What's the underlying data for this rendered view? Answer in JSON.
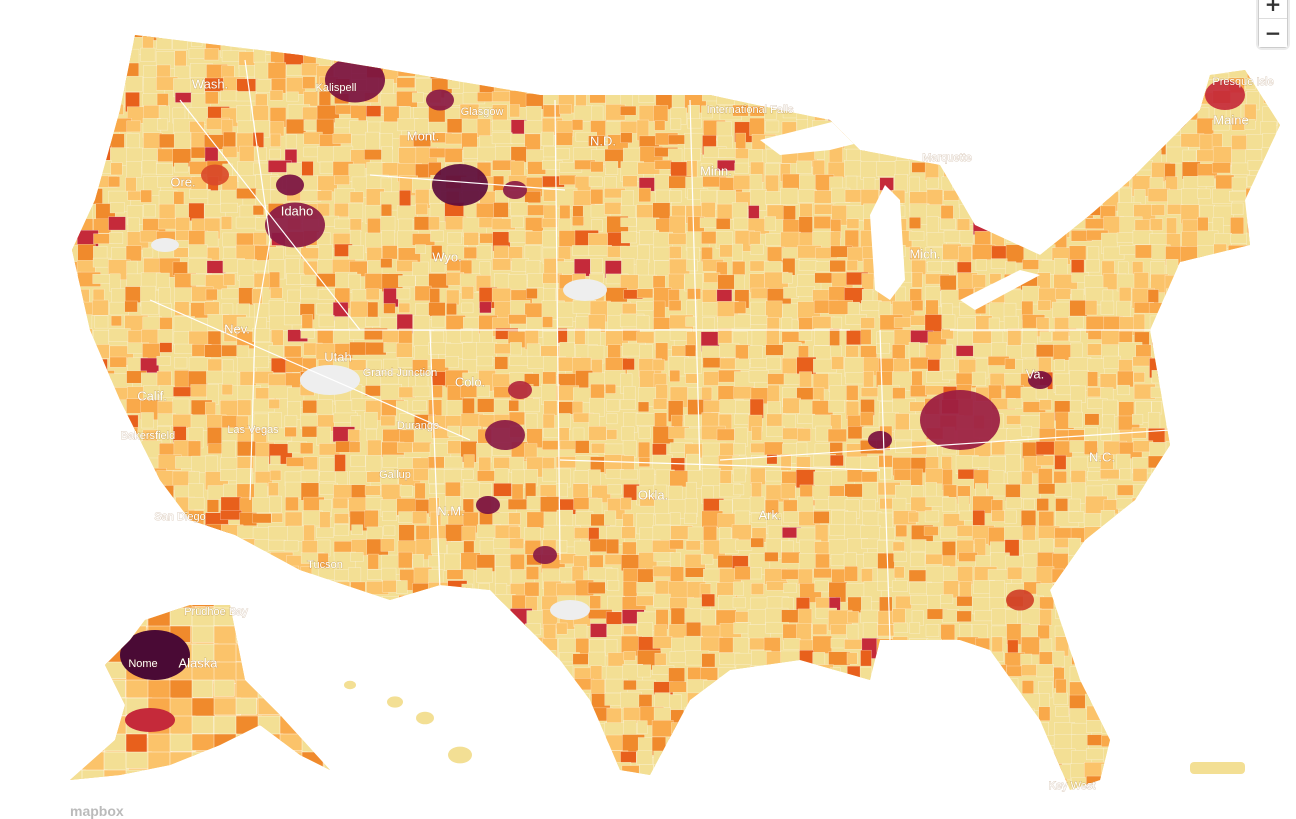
{
  "map": {
    "labels": [
      "Wash.",
      "Ore.",
      "Idaho",
      "Mont.",
      "N.D.",
      "Minn.",
      "Wyo.",
      "Nev.",
      "Utah",
      "Calif.",
      "Colo.",
      "N.M.",
      "Okla.",
      "Ark.",
      "Maine",
      "N.C.",
      "Alaska",
      "Kalispell",
      "Glasgow",
      "Durango",
      "Presque Isle",
      "Nome",
      "Bakersfield",
      "Prudhoe Bay",
      "Key West",
      "Las Vegas",
      "San Diego",
      "Tucson",
      "Gallup",
      "Grand Junction",
      "International Falls",
      "Marquette",
      "Va.",
      "Mich."
    ]
  },
  "controls": {
    "zoom_in": "+",
    "zoom_out": "−"
  },
  "attribution": "mapbox"
}
